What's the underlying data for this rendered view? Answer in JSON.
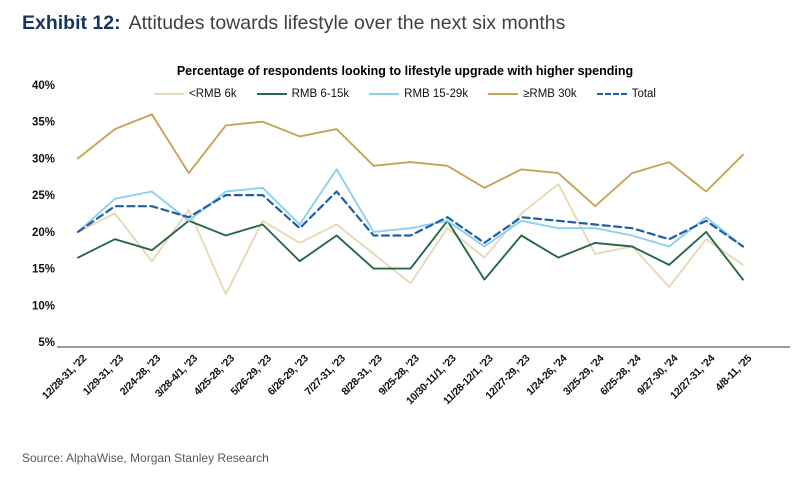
{
  "header": {
    "exhibit_label": "Exhibit 12:",
    "title": "Attitudes towards lifestyle over the next six months"
  },
  "source": {
    "text": "Source: AlphaWise, Morgan Stanley Research"
  },
  "chart_data": {
    "type": "line",
    "title": "Percentage of respondents looking to lifestyle upgrade with higher spending",
    "categories": [
      "12/28-31, '22",
      "1/29-31, '23",
      "2/24-28, '23",
      "3/28-4/1, '23",
      "4/25-28, '23",
      "5/26-29, '23",
      "6/26-29, '23",
      "7/27-31, '23",
      "8/28-31, '23",
      "9/25-28, '23",
      "10/30-11/1, '23",
      "11/28-12/1, '23",
      "12/27-29, '23",
      "1/24-26, '24",
      "3/25-29, '24",
      "6/25-28, '24",
      "9/27-30, '24",
      "12/27-31, '24",
      "4/8-11, '25"
    ],
    "series": [
      {
        "name": "<RMB 6k",
        "color": "#e8d9b5",
        "style": "solid",
        "values": [
          20,
          22.5,
          16,
          23,
          11.5,
          21.5,
          18.5,
          21,
          17,
          13,
          20.5,
          16.5,
          22.5,
          26.5,
          17,
          18,
          12.5,
          19,
          15.5
        ]
      },
      {
        "name": "RMB 6-15k",
        "color": "#27684c",
        "style": "solid",
        "values": [
          16.5,
          19,
          17.5,
          21.5,
          19.5,
          21,
          16,
          19.5,
          15,
          15,
          21.5,
          13.5,
          19.5,
          16.5,
          18.5,
          18,
          15.5,
          20,
          13.5
        ]
      },
      {
        "name": "RMB 15-29k",
        "color": "#8cd0ee",
        "style": "solid",
        "values": [
          20,
          24.5,
          25.5,
          21.5,
          25.5,
          26,
          21,
          28.5,
          20,
          20.5,
          21.5,
          18,
          21.5,
          20.5,
          20.5,
          19.5,
          18,
          22,
          18
        ]
      },
      {
        "name": "≥RMB 30k",
        "color": "#c6a455",
        "style": "solid",
        "values": [
          30,
          34,
          36,
          28,
          34.5,
          35,
          33,
          34,
          29,
          29.5,
          29,
          26,
          28.5,
          28,
          23.5,
          28,
          29.5,
          25.5,
          30.5
        ]
      },
      {
        "name": "Total",
        "color": "#1e5fa8",
        "style": "dashed",
        "values": [
          20,
          23.5,
          23.5,
          22,
          25,
          25,
          20.5,
          25.5,
          19.5,
          19.5,
          22,
          18.5,
          22,
          21.5,
          21,
          20.5,
          19,
          21.5,
          18
        ]
      }
    ],
    "ylim": [
      5,
      40
    ],
    "ytick_step": 5,
    "ytick_suffix": "%",
    "grid": false,
    "legend_position": "top",
    "axis_color": "#9b9b9b",
    "tick_label_color": "#111111"
  }
}
